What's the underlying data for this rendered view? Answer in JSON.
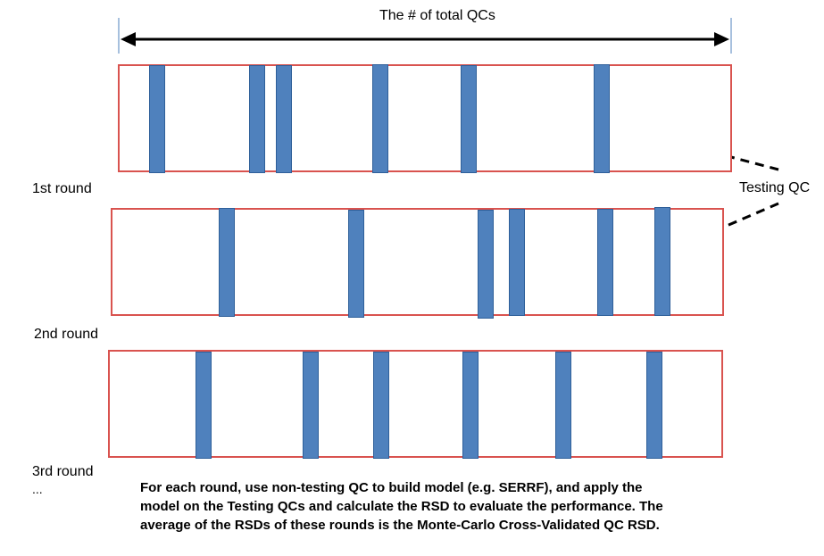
{
  "header": {
    "title": "The # of total QCs"
  },
  "annotation": {
    "testing_label": "Testing QC"
  },
  "rounds": [
    {
      "label": "1st round"
    },
    {
      "label": "2nd round"
    },
    {
      "label": "3rd round"
    }
  ],
  "ellipsis": "...",
  "caption": {
    "line1": "For each round, use non-testing QC to build model (e.g. SERRF), and apply the",
    "line2": "model on the Testing QCs and calculate the RSD to evaluate the performance. The",
    "line3": "average of the RSDs of these rounds is the Monte-Carlo Cross-Validated QC RSD."
  },
  "colors": {
    "box_border": "#d9534f",
    "bar_fill": "#4f81bd",
    "arrow": "#000000"
  }
}
